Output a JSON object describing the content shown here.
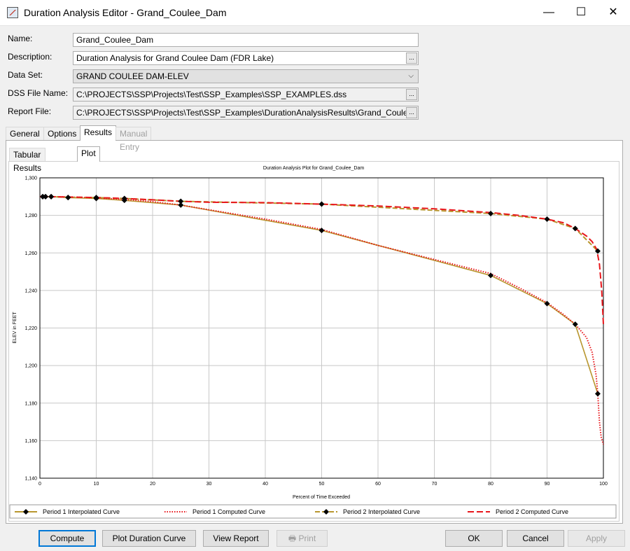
{
  "window": {
    "title": "Duration Analysis Editor - Grand_Coulee_Dam",
    "minimize_glyph": "—",
    "maximize_glyph": "☐",
    "close_glyph": "✕",
    "app_icon": "chart-icon"
  },
  "form": {
    "name_label": "Name:",
    "name_value": "Grand_Coulee_Dam",
    "description_label": "Description:",
    "description_value": "Duration Analysis for Grand Coulee Dam (FDR Lake)",
    "dataset_label": "Data Set:",
    "dataset_value": "GRAND COULEE DAM-ELEV",
    "dss_label": "DSS File Name:",
    "dss_value": "C:\\PROJECTS\\SSP\\Projects\\Test\\SSP_Examples\\SSP_EXAMPLES.dss",
    "report_label": "Report File:",
    "report_value": "C:\\PROJECTS\\SSP\\Projects\\Test\\SSP_Examples\\DurationAnalysisResults\\Grand_Coulee",
    "browse_label": "...",
    "dropdown_glyph": "⌵"
  },
  "tabs": [
    {
      "label": "General",
      "state": "normal"
    },
    {
      "label": "Options",
      "state": "normal"
    },
    {
      "label": "Results",
      "state": "active"
    },
    {
      "label": "Manual Entry",
      "state": "disabled"
    }
  ],
  "subtabs": [
    {
      "label": "Tabular Results",
      "state": "normal"
    },
    {
      "label": "Plot",
      "state": "active"
    }
  ],
  "chart_data": {
    "type": "line",
    "title": "Duration Analysis Plot for Grand_Coulee_Dam",
    "xlabel": "Percent of Time Exceeded",
    "ylabel": "ELEV in FEET",
    "xlim": [
      0,
      100
    ],
    "ylim": [
      1140,
      1300
    ],
    "x_ticks": [
      0,
      10,
      20,
      30,
      40,
      50,
      60,
      70,
      80,
      90,
      100
    ],
    "y_ticks": [
      1140,
      1160,
      1180,
      1200,
      1220,
      1240,
      1260,
      1280,
      1300
    ],
    "y_tick_labels": [
      "1,140",
      "1,160",
      "1,180",
      "1,200",
      "1,220",
      "1,240",
      "1,260",
      "1,280",
      "1,300"
    ],
    "grid": true,
    "legend_position": "bottom",
    "series": [
      {
        "name": "Period 1 Interpolated Curve",
        "color": "#b8962e",
        "style": "solid",
        "marker": "diamond",
        "x": [
          0.5,
          1,
          2,
          5,
          10,
          15,
          25,
          50,
          80,
          90,
          95,
          99
        ],
        "y": [
          1290,
          1290,
          1290,
          1289.5,
          1289,
          1288,
          1285.5,
          1272,
          1248,
          1233,
          1222,
          1185
        ]
      },
      {
        "name": "Period 1 Computed Curve",
        "color": "#e8161b",
        "style": "dotted",
        "marker": "none",
        "x": [
          0,
          2,
          5,
          10,
          15,
          20,
          25,
          30,
          40,
          50,
          60,
          70,
          80,
          85,
          90,
          93,
          95,
          97,
          98,
          98.7,
          99,
          99.3,
          99.6,
          100
        ],
        "y": [
          1290,
          1290,
          1289.8,
          1289.3,
          1288.5,
          1287.3,
          1285.5,
          1283,
          1278,
          1272.5,
          1264,
          1256.5,
          1249,
          1241.5,
          1233.5,
          1227,
          1222,
          1215,
          1207,
          1195,
          1185,
          1170,
          1162,
          1158
        ]
      },
      {
        "name": "Period 2 Interpolated Curve",
        "color": "#b8962e",
        "style": "dashed",
        "marker": "diamond",
        "x": [
          0.5,
          1,
          2,
          5,
          10,
          15,
          25,
          50,
          80,
          90,
          95,
          99
        ],
        "y": [
          1290,
          1290,
          1290,
          1289.5,
          1289.5,
          1289,
          1287.5,
          1286,
          1281,
          1278,
          1273,
          1261
        ]
      },
      {
        "name": "Period 2 Computed Curve",
        "color": "#e8161b",
        "style": "longdash",
        "marker": "none",
        "x": [
          0,
          5,
          10,
          15,
          20,
          25,
          30,
          40,
          50,
          60,
          70,
          80,
          85,
          90,
          93,
          95,
          97,
          98,
          98.8,
          99.3,
          99.7,
          100
        ],
        "y": [
          1290,
          1289.8,
          1289.5,
          1289,
          1288.3,
          1287.5,
          1287,
          1286.8,
          1286,
          1285,
          1283.5,
          1281.5,
          1280,
          1278,
          1276,
          1273,
          1269,
          1266,
          1262,
          1254,
          1240,
          1222
        ]
      }
    ]
  },
  "buttons": {
    "compute": "Compute",
    "plot_duration_curve": "Plot Duration Curve",
    "view_report": "View Report",
    "print": "Print",
    "ok": "OK",
    "cancel": "Cancel",
    "apply": "Apply"
  }
}
